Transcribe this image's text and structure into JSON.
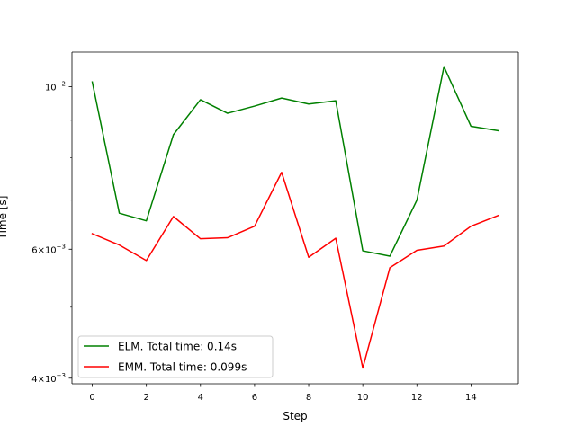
{
  "chart_data": {
    "type": "line",
    "title": "",
    "xlabel": "Step",
    "ylabel": "Time [s]",
    "yscale": "log",
    "x": [
      0,
      1,
      2,
      3,
      4,
      5,
      6,
      7,
      8,
      9,
      10,
      11,
      12,
      13,
      14,
      15
    ],
    "xlim": [
      -0.75,
      15.75
    ],
    "ylim": [
      0.00393,
      0.01115
    ],
    "xticks": [
      {
        "value": 0,
        "label": "0"
      },
      {
        "value": 2,
        "label": "2"
      },
      {
        "value": 4,
        "label": "4"
      },
      {
        "value": 6,
        "label": "6"
      },
      {
        "value": 8,
        "label": "8"
      },
      {
        "value": 10,
        "label": "10"
      },
      {
        "value": 12,
        "label": "12"
      },
      {
        "value": 14,
        "label": "14"
      }
    ],
    "yticks": [
      {
        "value": 0.004,
        "base": "4",
        "times": "×",
        "exp_base": "10",
        "exp": "−3"
      },
      {
        "value": 0.006,
        "base": "6",
        "times": "×",
        "exp_base": "10",
        "exp": "−3"
      },
      {
        "value": 0.01,
        "base": "",
        "times": "",
        "exp_base": "10",
        "exp": "−2"
      }
    ],
    "yminorticks": [
      0.005,
      0.007,
      0.008,
      0.009
    ],
    "grid": false,
    "legend_position": "lower-left",
    "series": [
      {
        "name": "ELM. Total time: 0.14s",
        "color": "#008000",
        "values": [
          0.01015,
          0.00672,
          0.00656,
          0.0086,
          0.0096,
          0.0092,
          0.00941,
          0.00965,
          0.00947,
          0.00957,
          0.00597,
          0.00587,
          0.007,
          0.01065,
          0.00883,
          0.00871
        ]
      },
      {
        "name": "EMM. Total time: 0.099s",
        "color": "#ff0000",
        "values": [
          0.0063,
          0.00608,
          0.00579,
          0.00665,
          0.0062,
          0.00622,
          0.00645,
          0.00764,
          0.00585,
          0.00621,
          0.00413,
          0.00566,
          0.00598,
          0.00606,
          0.00645,
          0.00667
        ]
      }
    ]
  }
}
